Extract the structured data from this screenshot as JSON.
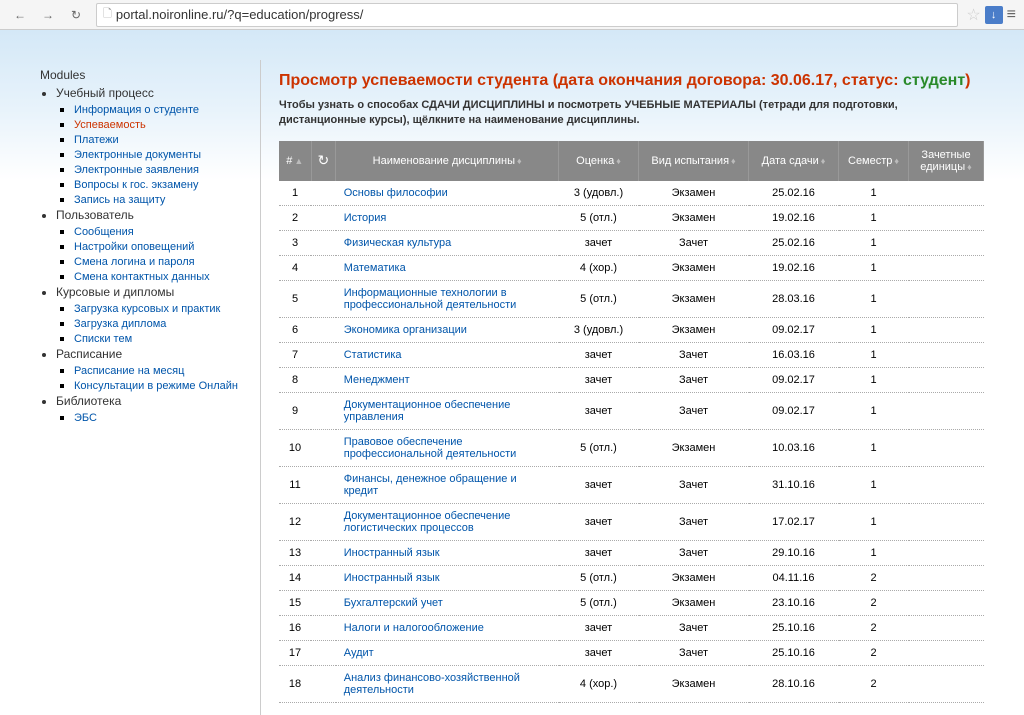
{
  "browser": {
    "url": "portal.noironline.ru/?q=education/progress/"
  },
  "sidebar": {
    "title": "Modules",
    "sections": [
      {
        "label": "Учебный процесс",
        "items": [
          {
            "label": "Информация о студенте"
          },
          {
            "label": "Успеваемость",
            "active": true
          },
          {
            "label": "Платежи"
          },
          {
            "label": "Электронные документы"
          },
          {
            "label": "Электронные заявления"
          },
          {
            "label": "Вопросы к гос. экзамену"
          },
          {
            "label": "Запись на защиту"
          }
        ]
      },
      {
        "label": "Пользователь",
        "items": [
          {
            "label": "Сообщения"
          },
          {
            "label": "Настройки оповещений"
          },
          {
            "label": "Смена логина и пароля"
          },
          {
            "label": "Смена контактных данных"
          }
        ]
      },
      {
        "label": "Курсовые и дипломы",
        "items": [
          {
            "label": "Загрузка курсовых и практик"
          },
          {
            "label": "Загрузка диплома"
          },
          {
            "label": "Списки тем"
          }
        ]
      },
      {
        "label": "Расписание",
        "items": [
          {
            "label": "Расписание на месяц"
          },
          {
            "label": "Консультации в режиме Онлайн"
          }
        ]
      },
      {
        "label": "Библиотека",
        "items": [
          {
            "label": "ЭБС"
          }
        ]
      }
    ]
  },
  "page": {
    "title": "Просмотр успеваемости студента",
    "meta_prefix": "(дата окончания договора: ",
    "meta_date": "30.06.17",
    "meta_status_label": ", статус: ",
    "meta_status": "студент",
    "meta_suffix": ")",
    "intro": "Чтобы узнать о способах СДАЧИ ДИСЦИПЛИНЫ и посмотреть УЧЕБНЫЕ МАТЕРИАЛЫ (тетради для подготовки, дистанционные курсы), щёлкните на наименование дисциплины."
  },
  "table": {
    "headers": {
      "num": "#",
      "status": "",
      "name": "Наименование дисциплины",
      "grade": "Оценка",
      "type": "Вид испытания",
      "date": "Дата сдачи",
      "sem": "Семестр",
      "credits": "Зачетные единицы"
    },
    "rows": [
      {
        "n": "1",
        "name": "Основы философии",
        "grade": "3 (удовл.)",
        "type": "Экзамен",
        "date": "25.02.16",
        "sem": "1",
        "credits": ""
      },
      {
        "n": "2",
        "name": "История",
        "grade": "5 (отл.)",
        "type": "Экзамен",
        "date": "19.02.16",
        "sem": "1",
        "credits": ""
      },
      {
        "n": "3",
        "name": "Физическая культура",
        "grade": "зачет",
        "type": "Зачет",
        "date": "25.02.16",
        "sem": "1",
        "credits": ""
      },
      {
        "n": "4",
        "name": "Математика",
        "grade": "4 (хор.)",
        "type": "Экзамен",
        "date": "19.02.16",
        "sem": "1",
        "credits": ""
      },
      {
        "n": "5",
        "name": "Информационные технологии в профессиональной деятельности",
        "grade": "5 (отл.)",
        "type": "Экзамен",
        "date": "28.03.16",
        "sem": "1",
        "credits": ""
      },
      {
        "n": "6",
        "name": "Экономика организации",
        "grade": "3 (удовл.)",
        "type": "Экзамен",
        "date": "09.02.17",
        "sem": "1",
        "credits": ""
      },
      {
        "n": "7",
        "name": "Статистика",
        "grade": "зачет",
        "type": "Зачет",
        "date": "16.03.16",
        "sem": "1",
        "credits": ""
      },
      {
        "n": "8",
        "name": "Менеджмент",
        "grade": "зачет",
        "type": "Зачет",
        "date": "09.02.17",
        "sem": "1",
        "credits": ""
      },
      {
        "n": "9",
        "name": "Документационное обеспечение управления",
        "grade": "зачет",
        "type": "Зачет",
        "date": "09.02.17",
        "sem": "1",
        "credits": ""
      },
      {
        "n": "10",
        "name": "Правовое обеспечение профессиональной деятельности",
        "grade": "5 (отл.)",
        "type": "Экзамен",
        "date": "10.03.16",
        "sem": "1",
        "credits": ""
      },
      {
        "n": "11",
        "name": "Финансы, денежное обращение и кредит",
        "grade": "зачет",
        "type": "Зачет",
        "date": "31.10.16",
        "sem": "1",
        "credits": ""
      },
      {
        "n": "12",
        "name": "Документационное обеспечение логистических процессов",
        "grade": "зачет",
        "type": "Зачет",
        "date": "17.02.17",
        "sem": "1",
        "credits": ""
      },
      {
        "n": "13",
        "name": "Иностранный язык",
        "grade": "зачет",
        "type": "Зачет",
        "date": "29.10.16",
        "sem": "1",
        "credits": ""
      },
      {
        "n": "14",
        "name": "Иностранный язык",
        "grade": "5 (отл.)",
        "type": "Экзамен",
        "date": "04.11.16",
        "sem": "2",
        "credits": ""
      },
      {
        "n": "15",
        "name": "Бухгалтерский учет",
        "grade": "5 (отл.)",
        "type": "Экзамен",
        "date": "23.10.16",
        "sem": "2",
        "credits": ""
      },
      {
        "n": "16",
        "name": "Налоги и налогообложение",
        "grade": "зачет",
        "type": "Зачет",
        "date": "25.10.16",
        "sem": "2",
        "credits": ""
      },
      {
        "n": "17",
        "name": "Аудит",
        "grade": "зачет",
        "type": "Зачет",
        "date": "25.10.16",
        "sem": "2",
        "credits": ""
      },
      {
        "n": "18",
        "name": "Анализ финансово-хозяйственной деятельности",
        "grade": "4 (хор.)",
        "type": "Экзамен",
        "date": "28.10.16",
        "sem": "2",
        "credits": ""
      }
    ]
  }
}
